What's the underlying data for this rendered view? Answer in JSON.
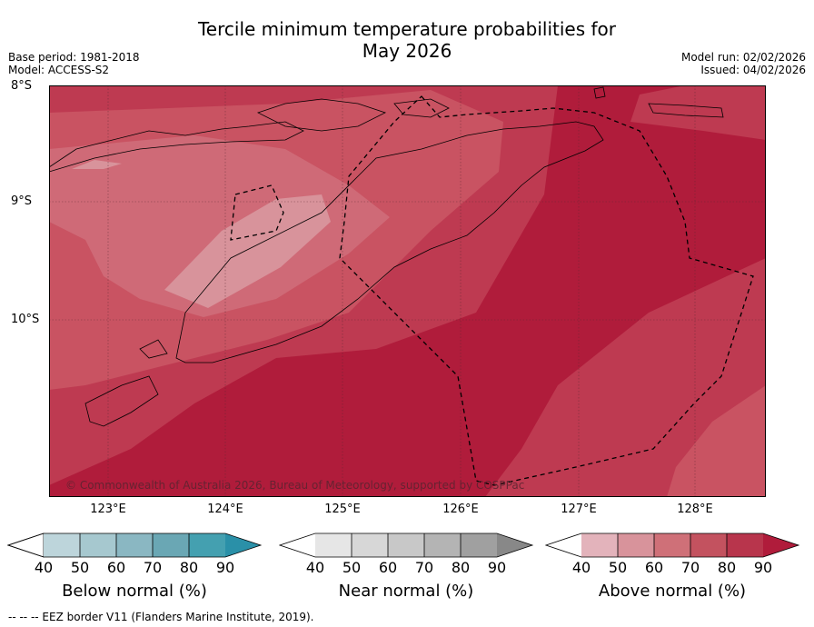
{
  "title_line1": "Tercile minimum temperature probabilities for",
  "title_line2": "May 2026",
  "meta": {
    "base_period": "Base period: 1981-2018",
    "model": "Model: ACCESS-S2",
    "model_run": "Model run: 02/02/2026",
    "issued": "Issued: 04/02/2026"
  },
  "map": {
    "lat_labels": [
      "8°S",
      "9°S",
      "10°S"
    ],
    "lon_labels": [
      "123°E",
      "124°E",
      "125°E",
      "126°E",
      "127°E",
      "128°E"
    ],
    "copyright": "© Commonwealth of Australia 2026, Bureau of Meteorology, supported by COSPPac",
    "colors": {
      "cat90": "#b01c3b",
      "cat80": "#be3a51",
      "cat70": "#c95362",
      "cat60": "#cf6a77",
      "cat50": "#d8939b",
      "coast": "#000000"
    }
  },
  "legends": [
    {
      "title": "Below normal (%)",
      "ticks": [
        "40",
        "50",
        "60",
        "70",
        "80",
        "90"
      ],
      "colors": [
        "#ffffff",
        "#bdd5db",
        "#a6c8cf",
        "#8ab7c2",
        "#6aa7b4",
        "#44a0b0",
        "#2a90a8"
      ]
    },
    {
      "title": "Near normal (%)",
      "ticks": [
        "40",
        "50",
        "60",
        "70",
        "80",
        "90"
      ],
      "colors": [
        "#ffffff",
        "#e6e6e6",
        "#d7d7d7",
        "#c8c8c8",
        "#b4b4b4",
        "#a0a0a0",
        "#888888"
      ]
    },
    {
      "title": "Above normal (%)",
      "ticks": [
        "40",
        "50",
        "60",
        "70",
        "80",
        "90"
      ],
      "colors": [
        "#ffffff",
        "#e3b3bb",
        "#d8939b",
        "#cf7078",
        "#c3525f",
        "#b8354c",
        "#b01c3b"
      ]
    }
  ],
  "footer": "--  --  -- EEZ border V11 (Flanders Marine Institute, 2019)."
}
